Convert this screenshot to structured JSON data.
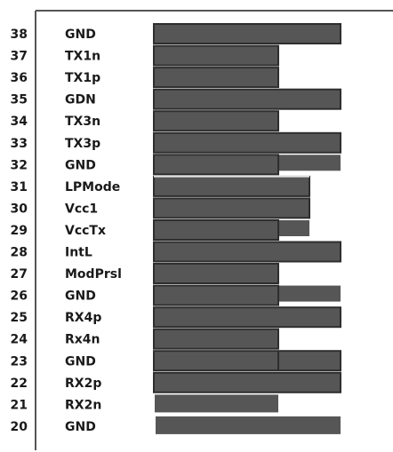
{
  "pins": [
    {
      "number": 38,
      "name": "GND"
    },
    {
      "number": 37,
      "name": "TX1n"
    },
    {
      "number": 36,
      "name": "TX1p"
    },
    {
      "number": 35,
      "name": "GDN"
    },
    {
      "number": 34,
      "name": "TX3n"
    },
    {
      "number": 33,
      "name": "TX3p"
    },
    {
      "number": 32,
      "name": "GND"
    },
    {
      "number": 31,
      "name": "LPMode"
    },
    {
      "number": 30,
      "name": "Vcc1"
    },
    {
      "number": 29,
      "name": "VccTx"
    },
    {
      "number": 28,
      "name": "IntL"
    },
    {
      "number": 27,
      "name": "ModPrsl"
    },
    {
      "number": 26,
      "name": "GND"
    },
    {
      "number": 25,
      "name": "RX4p"
    },
    {
      "number": 24,
      "name": "Rx4n"
    },
    {
      "number": 23,
      "name": "GND"
    },
    {
      "number": 22,
      "name": "RX2p"
    },
    {
      "number": 21,
      "name": "RX2n"
    },
    {
      "number": 20,
      "name": "GND"
    }
  ]
}
